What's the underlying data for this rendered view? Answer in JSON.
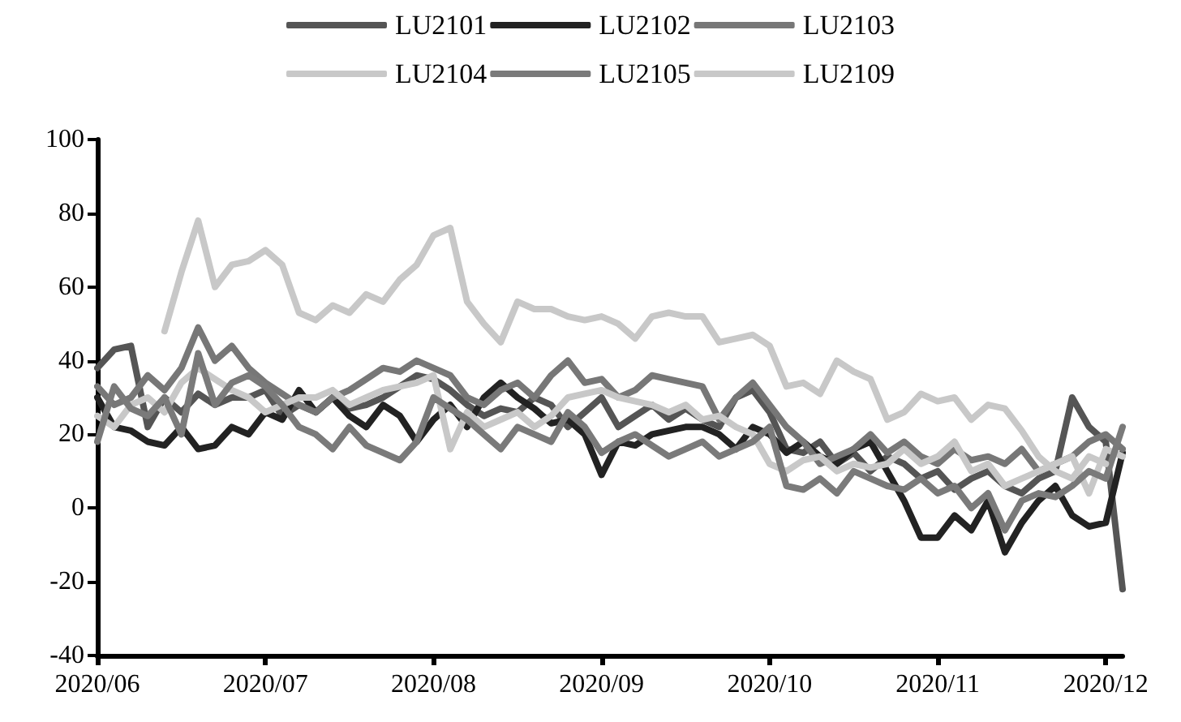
{
  "chart_data": {
    "type": "line",
    "categories": [
      "2020/06",
      null,
      null,
      null,
      null,
      null,
      null,
      null,
      null,
      null,
      "2020/07",
      null,
      null,
      null,
      null,
      null,
      null,
      null,
      null,
      null,
      "2020/08",
      null,
      null,
      null,
      null,
      null,
      null,
      null,
      null,
      null,
      "2020/09",
      null,
      null,
      null,
      null,
      null,
      null,
      null,
      null,
      null,
      "2020/10",
      null,
      null,
      null,
      null,
      null,
      null,
      null,
      null,
      null,
      "2020/11",
      null,
      null,
      null,
      null,
      null,
      null,
      null,
      null,
      null,
      "2020/12",
      null
    ],
    "series": [
      {
        "name": "LU2101",
        "color": "#555555",
        "values": [
          38,
          43,
          44,
          22,
          30,
          26,
          31,
          28,
          30,
          30,
          32,
          25,
          28,
          26,
          30,
          27,
          28,
          30,
          33,
          36,
          35,
          32,
          28,
          25,
          27,
          26,
          30,
          28,
          22,
          26,
          30,
          22,
          25,
          28,
          24,
          27,
          24,
          22,
          30,
          32,
          26,
          16,
          15,
          18,
          12,
          15,
          10,
          14,
          12,
          8,
          10,
          5,
          8,
          10,
          6,
          4,
          8,
          10,
          30,
          22,
          18,
          -22
        ]
      },
      {
        "name": "LU2102",
        "color": "#222222",
        "values": [
          30,
          22,
          21,
          18,
          17,
          22,
          16,
          17,
          22,
          20,
          26,
          24,
          32,
          26,
          30,
          25,
          22,
          28,
          25,
          18,
          24,
          28,
          22,
          30,
          34,
          30,
          27,
          23,
          24,
          20,
          9,
          18,
          17,
          20,
          21,
          22,
          22,
          20,
          16,
          22,
          20,
          15,
          18,
          14,
          12,
          16,
          18,
          10,
          2,
          -8,
          -8,
          -2,
          -6,
          2,
          -12,
          -4,
          2,
          6,
          -2,
          -5,
          -4,
          15
        ]
      },
      {
        "name": "LU2103",
        "color": "#777777",
        "values": [
          33,
          28,
          30,
          36,
          32,
          38,
          49,
          40,
          44,
          38,
          34,
          31,
          28,
          26,
          30,
          32,
          35,
          38,
          37,
          40,
          38,
          36,
          30,
          28,
          32,
          34,
          30,
          36,
          40,
          34,
          35,
          30,
          32,
          36,
          35,
          34,
          33,
          24,
          30,
          34,
          28,
          22,
          18,
          12,
          14,
          16,
          20,
          15,
          18,
          14,
          12,
          16,
          13,
          14,
          12,
          16,
          10,
          12,
          14,
          18,
          20,
          16
        ]
      },
      {
        "name": "LU2104",
        "color": "#c8c8c8",
        "values": [
          25,
          22,
          28,
          30,
          26,
          34,
          38,
          35,
          32,
          30,
          26,
          28,
          30,
          30,
          32,
          28,
          30,
          32,
          33,
          34,
          36,
          16,
          26,
          22,
          24,
          26,
          22,
          25,
          30,
          31,
          32,
          30,
          29,
          28,
          26,
          28,
          24,
          25,
          22,
          20,
          12,
          10,
          13,
          14,
          10,
          12,
          11,
          12,
          16,
          12,
          14,
          18,
          10,
          12,
          6,
          8,
          10,
          12,
          14,
          4,
          16,
          14
        ]
      },
      {
        "name": "LU2105",
        "color": "#7a7a7a",
        "values": [
          18,
          33,
          27,
          25,
          30,
          20,
          42,
          28,
          34,
          36,
          33,
          28,
          22,
          20,
          16,
          22,
          17,
          15,
          13,
          18,
          30,
          27,
          24,
          20,
          16,
          22,
          20,
          18,
          26,
          22,
          15,
          18,
          20,
          17,
          14,
          16,
          18,
          14,
          16,
          18,
          22,
          6,
          5,
          8,
          4,
          10,
          8,
          6,
          5,
          8,
          4,
          6,
          0,
          4,
          -6,
          2,
          4,
          3,
          6,
          10,
          8,
          22
        ]
      },
      {
        "name": "LU2109",
        "color": "#c8c8c8",
        "values": [
          null,
          null,
          null,
          null,
          48,
          64,
          78,
          60,
          66,
          67,
          70,
          66,
          53,
          51,
          55,
          53,
          58,
          56,
          62,
          66,
          74,
          76,
          56,
          50,
          45,
          56,
          54,
          54,
          52,
          51,
          52,
          50,
          46,
          52,
          53,
          52,
          52,
          45,
          46,
          47,
          44,
          33,
          34,
          31,
          40,
          37,
          35,
          24,
          26,
          31,
          29,
          30,
          24,
          28,
          27,
          21,
          14,
          10,
          8,
          14,
          12,
          null
        ]
      }
    ],
    "ylim": [
      -40,
      100
    ],
    "yticks": [
      -40,
      -20,
      0,
      20,
      40,
      60,
      80,
      100
    ],
    "grid": false,
    "legend": "top",
    "marker": "none",
    "line_style": "solid"
  }
}
